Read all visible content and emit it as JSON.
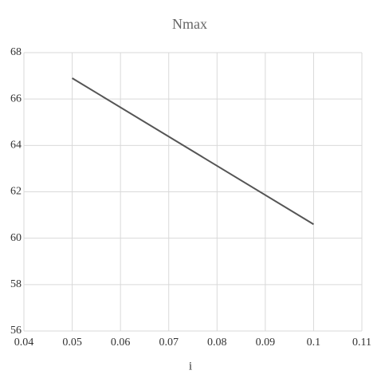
{
  "chart_data": {
    "type": "line",
    "title": "Nmax",
    "x_label": "i",
    "x": [
      0.05,
      0.1
    ],
    "values": [
      66.9,
      60.6
    ],
    "color": "#555555",
    "xlim": [
      0.04,
      0.11
    ],
    "xticks": [
      0.04,
      0.05,
      0.06,
      0.07,
      0.08,
      0.09,
      0.1,
      0.11
    ],
    "ylim": [
      56,
      68
    ],
    "yticks": [
      56,
      58,
      60,
      62,
      64,
      66,
      68
    ],
    "grid": true
  }
}
